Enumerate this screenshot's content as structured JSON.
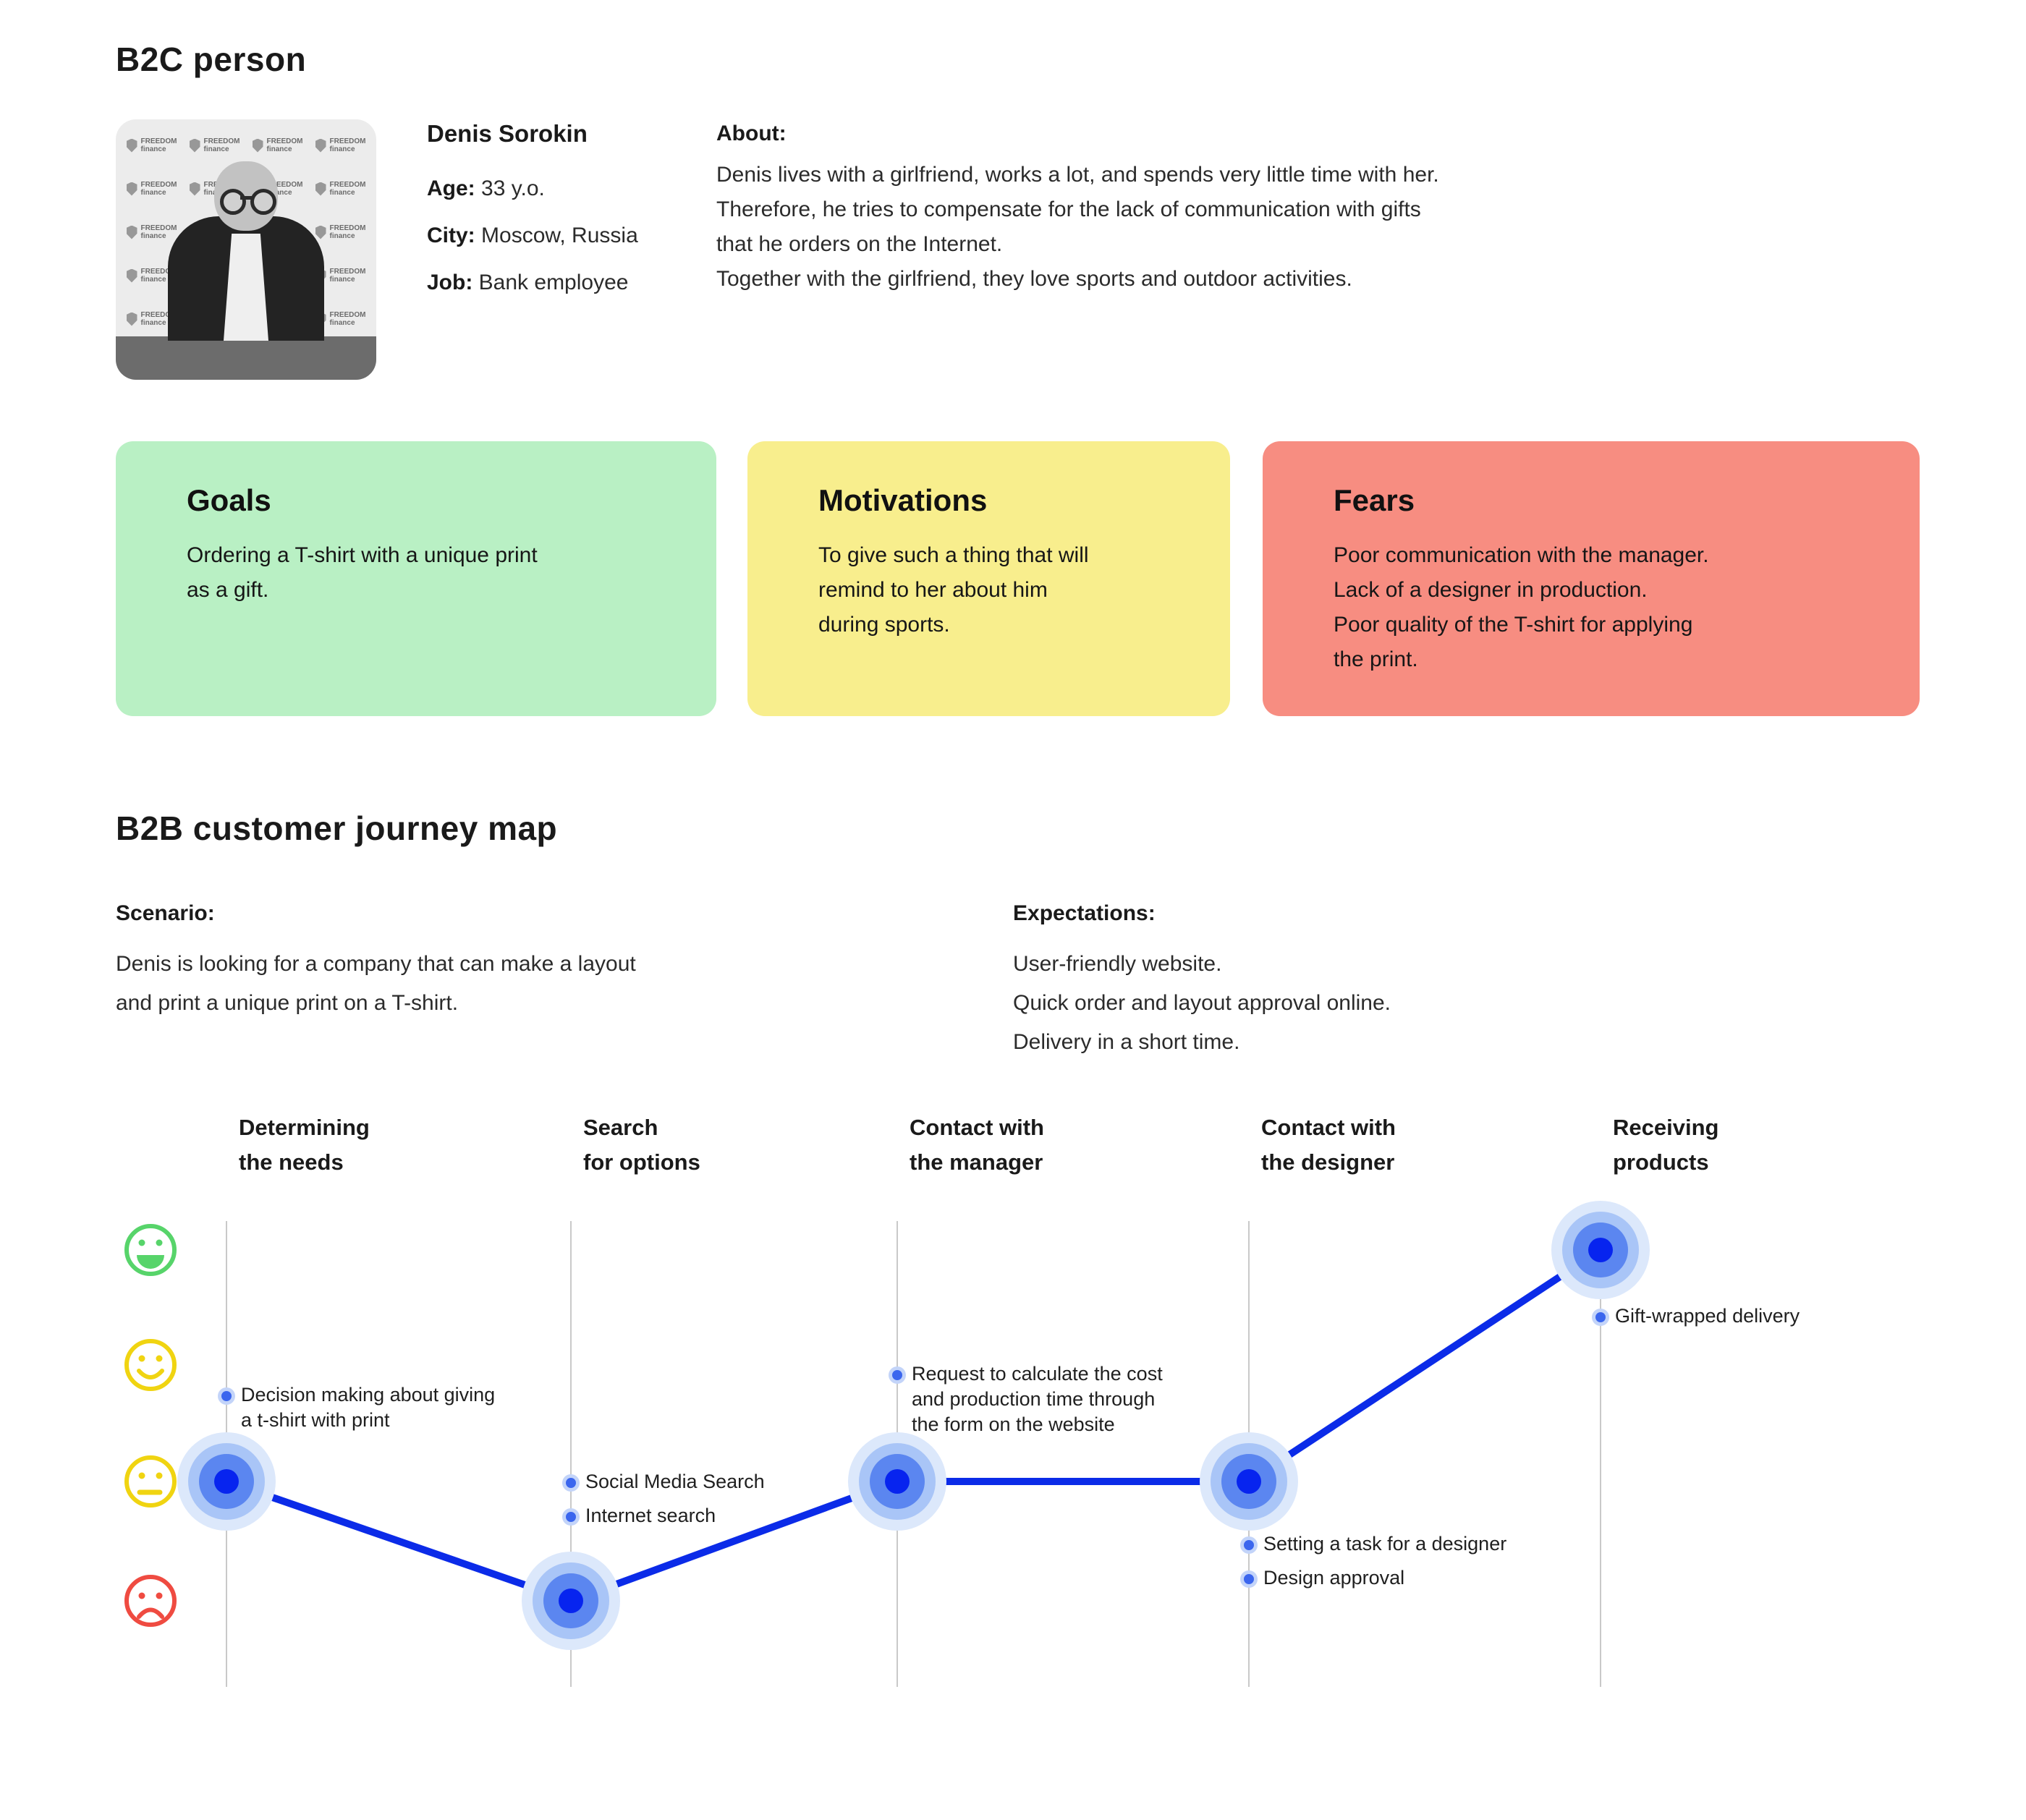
{
  "page": {
    "title_b2c": "B2C person",
    "title_b2b": "B2B customer journey map"
  },
  "persona": {
    "name": "Denis Sorokin",
    "age_label": "Age:",
    "age": "33 y.o.",
    "city_label": "City:",
    "city": "Moscow, Russia",
    "job_label": "Job:",
    "job": "Bank employee",
    "about_label": "About:",
    "about": "Denis lives with a girlfriend, works a lot, and spends very little time with her.\nTherefore, he tries to compensate for the lack of communication with gifts\nthat he orders on the Internet.\nTogether with the girlfriend, they love sports and outdoor activities.",
    "photo_backdrop_text": "FREEDOM finance"
  },
  "cards": [
    {
      "title": "Goals",
      "body": "Ordering a T-shirt with a unique print\nas a gift.",
      "color": "#b9f0c4"
    },
    {
      "title": "Motivations",
      "body": "To give such a thing that will\nremind to her about him\nduring sports.",
      "color": "#f8ee8d"
    },
    {
      "title": "Fears",
      "body": "Poor communication with the manager.\nLack of a designer in production.\nPoor quality of the T-shirt for applying\nthe print.",
      "color": "#f78d81"
    }
  ],
  "journey": {
    "scenario_label": "Scenario:",
    "scenario": "Denis is looking for a company that can make a layout\nand print a unique print on a T-shirt.",
    "expectations_label": "Expectations:",
    "expectations": "User-friendly website.\nQuick order and layout approval online.\nDelivery in a short time.",
    "chart_data": {
      "type": "line",
      "stages": [
        "Determining\nthe needs",
        "Search\nfor options",
        "Contact with\nthe manager",
        "Contact with\nthe designer",
        "Receiving\nproducts"
      ],
      "mood_scale_bottom_to_top": [
        "sad",
        "neutral",
        "happy",
        "delighted"
      ],
      "mood_values": [
        2,
        1,
        2,
        2,
        4
      ],
      "annotations": [
        {
          "stage": 0,
          "text": "Decision making about giving\na t-shirt with print"
        },
        {
          "stage": 1,
          "text": "Social Media Search"
        },
        {
          "stage": 1,
          "text": "Internet search"
        },
        {
          "stage": 2,
          "text": "Request to calculate the cost\nand production time through\nthe form on the website"
        },
        {
          "stage": 3,
          "text": "Setting a task for a designer"
        },
        {
          "stage": 3,
          "text": "Design approval"
        },
        {
          "stage": 4,
          "text": "Gift-wrapped delivery"
        }
      ],
      "line_color": "#0b2be8",
      "legend_position": "left-emoji-axis",
      "grid": "vertical-stage-lines"
    }
  },
  "colors": {
    "goals_card": "#b9f0c4",
    "motivations_card": "#f8ee8d",
    "fears_card": "#f78d81",
    "journey_line": "#0b2be8",
    "point_core": "#0724ef",
    "point_halos": [
      "#dce8fb",
      "#a9c5f7",
      "#5b86f0"
    ],
    "annotation_dot": "#3b66ee",
    "axis_line": "#c9c9c9",
    "emoji_delighted": "#57d46a",
    "emoji_happy": "#f0d411",
    "emoji_neutral": "#f0d411",
    "emoji_sad": "#ef4b41"
  }
}
